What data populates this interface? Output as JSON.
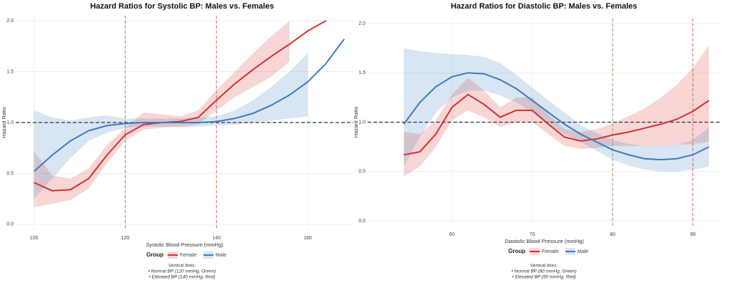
{
  "chart_data": [
    {
      "type": "line",
      "title": "Hazard Ratios for Systolic BP: Males vs. Females",
      "xlabel": "Systolic Blood Pressure (mmHg)",
      "ylabel": "Hazard Ratio",
      "x": [
        100,
        104,
        108,
        112,
        116,
        120,
        124,
        128,
        132,
        136,
        140,
        144,
        148,
        152,
        156,
        160,
        164,
        168
      ],
      "series": [
        {
          "name": "Female",
          "color": "#d7302f",
          "values": [
            0.41,
            0.33,
            0.34,
            0.45,
            0.68,
            0.88,
            0.98,
            1.0,
            1.01,
            1.05,
            1.22,
            1.38,
            1.52,
            1.65,
            1.77,
            1.9,
            2.0,
            null
          ],
          "lower": [
            0.17,
            0.2,
            0.24,
            0.35,
            0.6,
            0.82,
            0.93,
            0.95,
            0.96,
            0.98,
            1.12,
            1.25,
            1.35,
            1.45,
            1.6,
            null,
            null,
            null
          ],
          "upper": [
            0.72,
            0.48,
            0.45,
            0.55,
            0.78,
            0.95,
            1.1,
            1.08,
            1.06,
            1.12,
            1.32,
            1.5,
            1.68,
            1.85,
            2.0,
            null,
            null,
            null
          ]
        },
        {
          "name": "Male",
          "color": "#3b7bbf",
          "values": [
            0.52,
            0.68,
            0.82,
            0.92,
            0.97,
            0.99,
            1.0,
            1.0,
            1.0,
            1.0,
            1.01,
            1.04,
            1.09,
            1.17,
            1.27,
            1.4,
            1.58,
            1.82
          ],
          "lower": [
            0.25,
            0.45,
            0.65,
            0.82,
            0.9,
            0.95,
            0.96,
            0.96,
            0.96,
            0.96,
            0.97,
            0.98,
            1.0,
            1.02,
            1.04,
            1.06,
            null,
            null
          ],
          "upper": [
            1.12,
            1.05,
            1.02,
            1.05,
            1.07,
            1.04,
            1.04,
            1.04,
            1.04,
            1.05,
            1.06,
            1.12,
            1.22,
            1.35,
            1.5,
            1.68,
            null,
            null
          ]
        }
      ],
      "xlim": [
        96,
        170
      ],
      "xticks": [
        100,
        120,
        140,
        160
      ],
      "ylim": [
        -0.05,
        2.05
      ],
      "yticks": [
        {
          "value": 0,
          "label": "0.0"
        },
        0.5,
        {
          "value": 1,
          "label": "1.0"
        },
        1.5,
        {
          "value": 2,
          "label": "2.0"
        }
      ],
      "grid": true,
      "hline": {
        "value": 1,
        "color": "#333333"
      },
      "vlines": [
        {
          "value": 120,
          "color": "#4daf4a"
        },
        {
          "value": 140,
          "color": "#e06050"
        }
      ],
      "legend_title": "Group",
      "annotations": [
        "Vertical lines:",
        "• Normal BP (120 mmHg, Green)",
        "• Elevated BP (140 mmHg, Red)"
      ]
    },
    {
      "type": "line",
      "title": "Hazard Ratios for Diastolic BP: Males vs. Females",
      "xlabel": "Diastolic Blood Pressure (mmHg)",
      "ylabel": "Hazard Ratio",
      "x": [
        54,
        56,
        58,
        60,
        62,
        64,
        66,
        68,
        70,
        72,
        74,
        76,
        78,
        80,
        82,
        84,
        86,
        88,
        90,
        92
      ],
      "series": [
        {
          "name": "Female",
          "color": "#d7302f",
          "values": [
            0.67,
            0.7,
            0.88,
            1.15,
            1.28,
            1.18,
            1.05,
            1.12,
            1.12,
            0.98,
            0.85,
            0.81,
            0.83,
            0.87,
            0.9,
            0.94,
            0.98,
            1.03,
            1.11,
            1.22
          ],
          "lower": [
            0.45,
            0.55,
            0.75,
            1.02,
            1.12,
            1.05,
            0.95,
            1.0,
            1.0,
            0.88,
            0.76,
            0.73,
            0.74,
            0.76,
            0.76,
            0.76,
            0.76,
            0.77,
            0.78,
            0.8
          ],
          "upper": [
            0.9,
            0.88,
            1.02,
            1.28,
            1.45,
            1.32,
            1.15,
            1.25,
            1.25,
            1.08,
            0.93,
            0.9,
            0.93,
            0.99,
            1.06,
            1.14,
            1.25,
            1.38,
            1.55,
            1.78
          ]
        },
        {
          "name": "Male",
          "color": "#3b7bbf",
          "values": [
            0.98,
            1.2,
            1.36,
            1.46,
            1.5,
            1.49,
            1.43,
            1.34,
            1.22,
            1.1,
            0.98,
            0.88,
            0.8,
            0.72,
            0.67,
            0.63,
            0.62,
            0.63,
            0.67,
            0.75
          ],
          "lower": [
            0.55,
            0.85,
            1.1,
            1.25,
            1.32,
            1.32,
            1.27,
            1.2,
            1.1,
            0.98,
            0.88,
            0.8,
            0.71,
            0.62,
            0.56,
            0.52,
            0.5,
            0.5,
            0.52,
            0.55
          ],
          "upper": [
            1.75,
            1.72,
            1.7,
            1.69,
            1.68,
            1.66,
            1.6,
            1.48,
            1.35,
            1.22,
            1.1,
            0.97,
            0.89,
            0.82,
            0.78,
            0.76,
            0.76,
            0.77,
            0.82,
            0.95
          ]
        }
      ],
      "xlim": [
        49.5,
        93.5
      ],
      "xticks": [
        60,
        70,
        80,
        90
      ],
      "ylim": [
        -0.05,
        2.05
      ],
      "yticks": [
        {
          "value": 0,
          "label": "0.0"
        },
        0.5,
        {
          "value": 1,
          "label": "1.0"
        },
        1.5,
        {
          "value": 2,
          "label": "2.0"
        }
      ],
      "grid": true,
      "hline": {
        "value": 1,
        "color": "#333333"
      },
      "vlines": [
        {
          "value": 80,
          "color": "#8aa05a"
        },
        {
          "value": 90,
          "color": "#e06050"
        }
      ],
      "legend_title": "Group",
      "annotations": [
        "Vertical lines:",
        "• Normal BP (80 mmHg, Green)",
        "• Elevated BP (90 mmHg, Red)"
      ]
    }
  ]
}
